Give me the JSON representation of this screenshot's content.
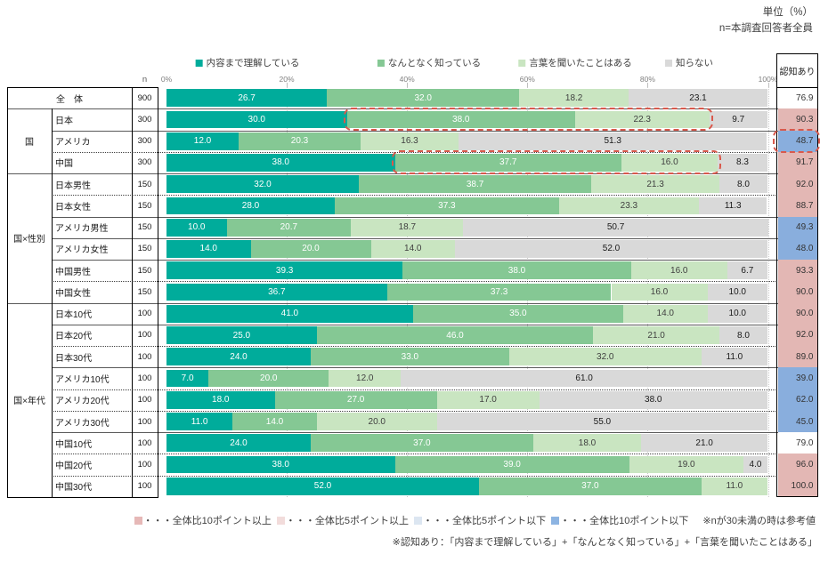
{
  "header": {
    "unit_note": "単位（%）",
    "n_note": "n=本調査回答者全員"
  },
  "axis": {
    "n_column_header": "n",
    "ticks": [
      "0%",
      "20%",
      "40%",
      "60%",
      "80%",
      "100%"
    ]
  },
  "recognition_column": {
    "header": "認知あり",
    "highlight_colors": {
      "pink": "#E3B7B4",
      "blue": "#89AEDD",
      "none": "#FFFFFF"
    }
  },
  "chart_data": {
    "type": "bar",
    "orientation": "horizontal-stacked",
    "unit": "%",
    "xlim": [
      0,
      100
    ],
    "grid": "dotted-vertical-20pct",
    "legend_position": "top",
    "stack_series": [
      "内容まで理解している",
      "なんとなく知っている",
      "言葉を聞いたことはある",
      "知らない"
    ],
    "series_colors": [
      "#00AC9B",
      "#85C894",
      "#C9E5C1",
      "#D9D9D9"
    ],
    "groups": [
      {
        "label": "国",
        "from": 1,
        "to": 3
      },
      {
        "label": "国×性別",
        "from": 4,
        "to": 9
      },
      {
        "label": "国×年代",
        "from": 10,
        "to": 18
      }
    ],
    "rows": [
      {
        "group": "",
        "label": "全　体",
        "n": 900,
        "values": [
          26.7,
          32.0,
          18.2,
          23.1
        ],
        "recognition": 76.9,
        "recognition_highlight": "none",
        "sep": null,
        "merged": true
      },
      {
        "group": "国",
        "label": "日本",
        "n": 300,
        "values": [
          30.0,
          38.0,
          22.3,
          9.7
        ],
        "recognition": 90.3,
        "recognition_highlight": "pink",
        "sep": "full-solid"
      },
      {
        "group": "国",
        "label": "アメリカ",
        "n": 300,
        "values": [
          12.0,
          20.3,
          16.3,
          51.3
        ],
        "recognition": 48.7,
        "recognition_highlight": "blue",
        "sep": "inner-solid"
      },
      {
        "group": "国",
        "label": "中国",
        "n": 300,
        "values": [
          38.0,
          37.7,
          16.0,
          8.3
        ],
        "recognition": 91.7,
        "recognition_highlight": "pink",
        "sep": "inner-dotted"
      },
      {
        "group": "国×性別",
        "label": "日本男性",
        "n": 150,
        "values": [
          32.0,
          38.7,
          21.3,
          8.0
        ],
        "recognition": 92.0,
        "recognition_highlight": "pink",
        "sep": "full-solid"
      },
      {
        "group": "国×性別",
        "label": "日本女性",
        "n": 150,
        "values": [
          28.0,
          37.3,
          23.3,
          11.3
        ],
        "recognition": 88.7,
        "recognition_highlight": "pink",
        "sep": "inner-dotted"
      },
      {
        "group": "国×性別",
        "label": "アメリカ男性",
        "n": 150,
        "values": [
          10.0,
          20.7,
          18.7,
          50.7
        ],
        "recognition": 49.3,
        "recognition_highlight": "blue",
        "sep": "inner-solid"
      },
      {
        "group": "国×性別",
        "label": "アメリカ女性",
        "n": 150,
        "values": [
          14.0,
          20.0,
          14.0,
          52.0
        ],
        "recognition": 48.0,
        "recognition_highlight": "blue",
        "sep": "inner-solid"
      },
      {
        "group": "国×性別",
        "label": "中国男性",
        "n": 150,
        "values": [
          39.3,
          38.0,
          16.0,
          6.7
        ],
        "recognition": 93.3,
        "recognition_highlight": "pink",
        "sep": "inner-solid"
      },
      {
        "group": "国×性別",
        "label": "中国女性",
        "n": 150,
        "values": [
          36.7,
          37.3,
          16.0,
          10.0
        ],
        "recognition": 90.0,
        "recognition_highlight": "pink",
        "sep": "inner-dotted"
      },
      {
        "group": "国×年代",
        "label": "日本10代",
        "n": 100,
        "values": [
          41.0,
          35.0,
          14.0,
          10.0
        ],
        "recognition": 90.0,
        "recognition_highlight": "pink",
        "sep": "full-solid"
      },
      {
        "group": "国×年代",
        "label": "日本20代",
        "n": 100,
        "values": [
          25.0,
          46.0,
          21.0,
          8.0
        ],
        "recognition": 92.0,
        "recognition_highlight": "pink",
        "sep": "inner-solid"
      },
      {
        "group": "国×年代",
        "label": "日本30代",
        "n": 100,
        "values": [
          24.0,
          33.0,
          32.0,
          11.0
        ],
        "recognition": 89.0,
        "recognition_highlight": "pink",
        "sep": "inner-dotted"
      },
      {
        "group": "国×年代",
        "label": "アメリカ10代",
        "n": 100,
        "values": [
          7.0,
          20.0,
          12.0,
          61.0
        ],
        "recognition": 39.0,
        "recognition_highlight": "blue",
        "sep": "inner-solid"
      },
      {
        "group": "国×年代",
        "label": "アメリカ20代",
        "n": 100,
        "values": [
          18.0,
          27.0,
          17.0,
          38.0
        ],
        "recognition": 62.0,
        "recognition_highlight": "blue",
        "sep": "inner-dotted"
      },
      {
        "group": "国×年代",
        "label": "アメリカ30代",
        "n": 100,
        "values": [
          11.0,
          14.0,
          20.0,
          55.0
        ],
        "recognition": 45.0,
        "recognition_highlight": "blue",
        "sep": "inner-dotted"
      },
      {
        "group": "国×年代",
        "label": "中国10代",
        "n": 100,
        "values": [
          24.0,
          37.0,
          18.0,
          21.0
        ],
        "recognition": 79.0,
        "recognition_highlight": "none",
        "sep": "inner-solid"
      },
      {
        "group": "国×年代",
        "label": "中国20代",
        "n": 100,
        "values": [
          38.0,
          39.0,
          19.0,
          4.0
        ],
        "recognition": 96.0,
        "recognition_highlight": "pink",
        "sep": "inner-dotted"
      },
      {
        "group": "国×年代",
        "label": "中国30代",
        "n": 100,
        "values": [
          52.0,
          37.0,
          11.0,
          0.0
        ],
        "recognition": 100.0,
        "recognition_highlight": "pink",
        "sep": "inner-dotted"
      }
    ]
  },
  "annotations": {
    "dash_color": "#D9594C",
    "dashed_boxes": [
      {
        "type": "bar-range",
        "row": 1,
        "from_pct": 30.0,
        "to_pct": 90.3
      },
      {
        "type": "bar-range",
        "row": 3,
        "from_pct": 38.0,
        "to_pct": 91.7
      },
      {
        "type": "recognition-cell",
        "row": 2
      }
    ]
  },
  "footnotes": {
    "threshold_legend": [
      {
        "swatch": "#E6B8B7",
        "text": "・・・全体比10ポイント以上"
      },
      {
        "swatch": "#F2DCDB",
        "text": "・・・全体比5ポイント以上"
      },
      {
        "swatch": "#DCE6F1",
        "text": "・・・全体比5ポイント以下"
      },
      {
        "swatch": "#8DB4E2",
        "text": "・・・全体比10ポイント以下"
      }
    ],
    "sample_note": "※nが30未満の時は参考値",
    "definition": "※認知あり：「内容まで理解している」+「なんとなく知っている」+「言葉を聞いたことはある」"
  }
}
